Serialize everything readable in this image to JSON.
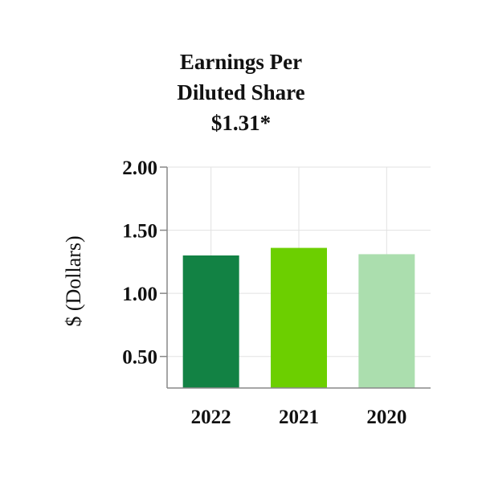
{
  "chart_data": {
    "type": "bar",
    "title_lines": [
      "Earnings Per",
      "Diluted Share",
      "$1.31*"
    ],
    "ylabel": "$ (Dollars)",
    "xlabel": "",
    "categories": [
      "2022",
      "2021",
      "2020"
    ],
    "values": [
      1.3,
      1.36,
      1.31
    ],
    "colors": [
      "#128244",
      "#6ccf00",
      "#abdeae"
    ],
    "ylim": [
      0.25,
      2.0
    ],
    "yticks": [
      0.5,
      1.0,
      1.5,
      2.0
    ],
    "ytick_labels": [
      "0.50",
      "1.00",
      "1.50",
      "2.00"
    ],
    "grid": true,
    "legend": "none"
  }
}
